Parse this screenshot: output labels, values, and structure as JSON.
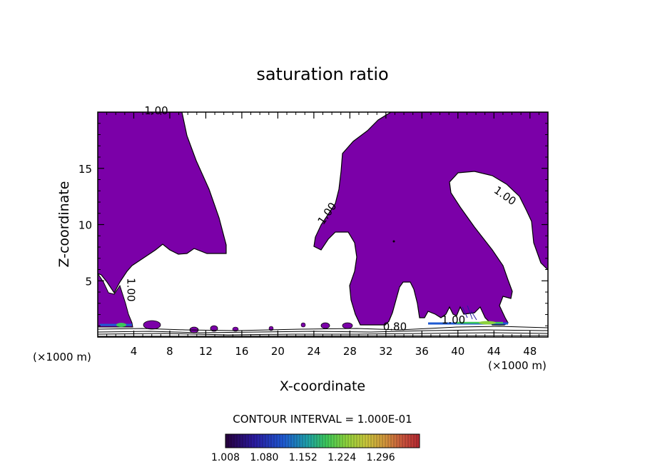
{
  "chart_data": {
    "type": "contour",
    "title": "saturation ratio",
    "xlabel": "X-coordinate",
    "ylabel": "Z-coordinate",
    "x_unit": "(×1000 m)",
    "y_unit": "(×1000 m)",
    "xlim": [
      0,
      50
    ],
    "ylim": [
      0,
      20
    ],
    "x_ticks": [
      4,
      8,
      12,
      16,
      20,
      24,
      28,
      32,
      36,
      40,
      44,
      48
    ],
    "y_ticks": [
      5,
      10,
      15
    ],
    "contour_labels": [
      {
        "text": "1.00",
        "x": 6.5,
        "z": 19.8
      },
      {
        "text": "1.00",
        "x": 25.8,
        "z": 10.8
      },
      {
        "text": "1.00",
        "x": 45.0,
        "z": 12.3
      },
      {
        "text": "1.00",
        "x": 3.3,
        "z": 4.2
      },
      {
        "text": "1.00",
        "x": 39.5,
        "z": 1.2
      },
      {
        "text": "0.80",
        "x": 33.0,
        "z": 0.6
      }
    ],
    "fill_color": "#7b00a8",
    "contour_interval_text": "CONTOUR INTERVAL = 1.000E-01",
    "colorbar": {
      "ticks": [
        "1.008",
        "1.080",
        "1.152",
        "1.224",
        "1.296"
      ],
      "colors": [
        "#28003c",
        "#2a1aa0",
        "#1e5ad2",
        "#1ea0aa",
        "#3cc85a",
        "#8cd23c",
        "#c8c83c",
        "#d2963c",
        "#c8503c",
        "#b42832"
      ]
    }
  }
}
